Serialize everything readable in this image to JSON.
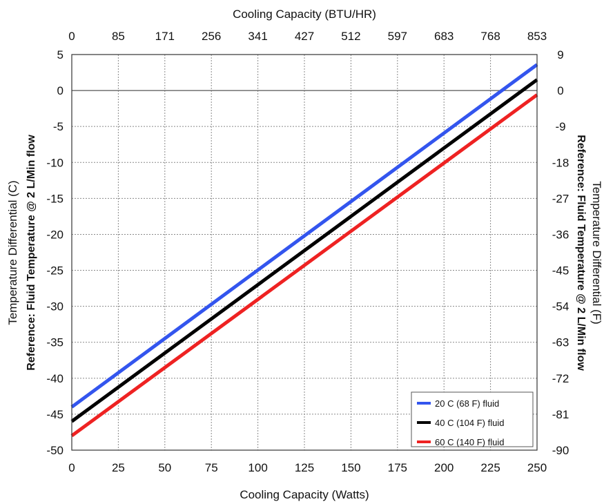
{
  "chart_data": {
    "type": "line",
    "top_axis": {
      "label": "Cooling Capacity (BTU/HR)",
      "tick_labels": [
        "0",
        "85",
        "171",
        "256",
        "341",
        "427",
        "512",
        "597",
        "683",
        "768",
        "853"
      ]
    },
    "bottom_axis": {
      "label": "Cooling Capacity (Watts)",
      "range": [
        0,
        250
      ],
      "ticks": [
        0,
        25,
        50,
        75,
        100,
        125,
        150,
        175,
        200,
        225,
        250
      ]
    },
    "left_axis": {
      "label": "Temperature Differential (C)",
      "reference_label": "Reference: Fluid Temperature @ 2 L/Min flow",
      "range": [
        -50,
        5
      ],
      "ticks": [
        5,
        0,
        -5,
        -10,
        -15,
        -20,
        -25,
        -30,
        -35,
        -40,
        -45,
        -50
      ]
    },
    "right_axis": {
      "label": "Temperature Differential (F)",
      "reference_label": "Reference: Fluid Temperature @ 2 L/Min flow",
      "tick_labels": [
        "9",
        "0",
        "-9",
        "-18",
        "-27",
        "-36",
        "-45",
        "-54",
        "-63",
        "-72",
        "-81",
        "-90"
      ]
    },
    "grid": true,
    "legend_position": "bottom-right",
    "series": [
      {
        "name": "20 C (68 F) fluid",
        "color": "#3355ee",
        "x": [
          0,
          250
        ],
        "y": [
          -44,
          3.6
        ]
      },
      {
        "name": "40 C (104 F) fluid",
        "color": "#000000",
        "x": [
          0,
          250
        ],
        "y": [
          -46,
          1.5
        ]
      },
      {
        "name": "60 C (140 F) fluid",
        "color": "#ee2222",
        "x": [
          0,
          250
        ],
        "y": [
          -48,
          -0.6
        ]
      }
    ]
  }
}
